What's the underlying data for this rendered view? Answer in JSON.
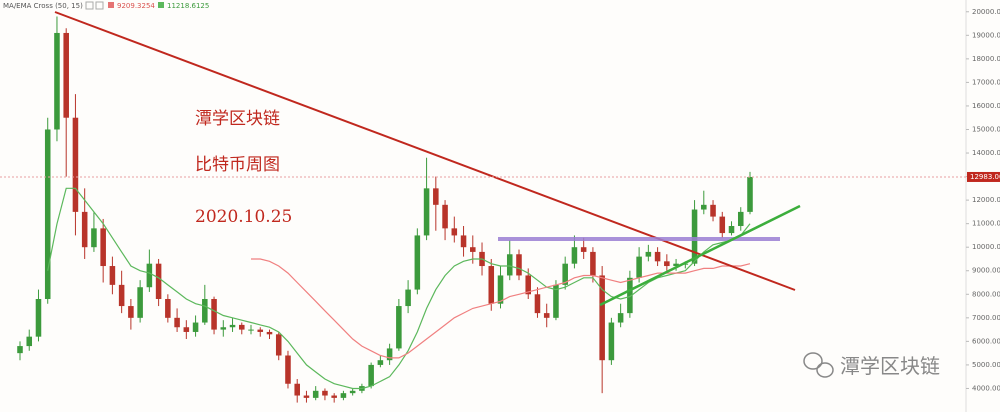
{
  "header": {
    "indicator": "MA/EMA Cross (50, 15)",
    "value_1": 9209.3254,
    "value_2": 11218.6125
  },
  "notes": [
    "潭学区块链",
    "比特币周图",
    "2020.10.25"
  ],
  "watermark": "潭学区块链",
  "chart_data": {
    "type": "candlestick",
    "up_color": "#3c9a3c",
    "down_color": "#b8342a",
    "ylim": [
      3000,
      20500
    ],
    "yticks": [
      {
        "value": 4000,
        "label": "4000.00"
      },
      {
        "value": 5000,
        "label": "5000.00"
      },
      {
        "value": 6000,
        "label": "6000.00"
      },
      {
        "value": 7000,
        "label": "7000.00"
      },
      {
        "value": 8000,
        "label": "8000.00"
      },
      {
        "value": 9000,
        "label": "9000.00"
      },
      {
        "value": 10000,
        "label": "10000.00"
      },
      {
        "value": 11000,
        "label": "11000.00"
      },
      {
        "value": 12000,
        "label": "12000.00"
      },
      {
        "value": 13000,
        "label": "13000.00"
      },
      {
        "value": 14000,
        "label": "14000.00"
      },
      {
        "value": 15000,
        "label": "15000.00"
      },
      {
        "value": 16000,
        "label": "16000.00"
      },
      {
        "value": 17000,
        "label": "17000.00"
      },
      {
        "value": 18000,
        "label": "18000.00"
      },
      {
        "value": 19000,
        "label": "19000.00"
      },
      {
        "value": 20000,
        "label": "20000.00"
      }
    ],
    "last_price": {
      "value": 12983,
      "label": "12983.00"
    },
    "candles": [
      [
        5500,
        6000,
        5200,
        5800
      ],
      [
        5800,
        6500,
        5600,
        6200
      ],
      [
        6200,
        8200,
        6000,
        7800
      ],
      [
        7800,
        15500,
        7600,
        15000
      ],
      [
        15000,
        19800,
        14500,
        19100
      ],
      [
        19100,
        19300,
        13000,
        15500
      ],
      [
        15500,
        16500,
        10500,
        11500
      ],
      [
        11500,
        12500,
        9500,
        10000
      ],
      [
        10000,
        11500,
        9800,
        10800
      ],
      [
        10800,
        11200,
        8500,
        9200
      ],
      [
        9200,
        9600,
        8000,
        8400
      ],
      [
        8400,
        9000,
        7200,
        7500
      ],
      [
        7500,
        7800,
        6500,
        7000
      ],
      [
        7000,
        8600,
        6800,
        8300
      ],
      [
        8300,
        9900,
        8100,
        9300
      ],
      [
        9300,
        9500,
        7500,
        7800
      ],
      [
        7800,
        8000,
        6800,
        7000
      ],
      [
        7000,
        7400,
        6400,
        6600
      ],
      [
        6600,
        6900,
        6100,
        6400
      ],
      [
        6400,
        7100,
        6200,
        6800
      ],
      [
        6800,
        8400,
        6700,
        7800
      ],
      [
        7800,
        7900,
        6300,
        6500
      ],
      [
        6500,
        6900,
        6200,
        6600
      ],
      [
        6600,
        7000,
        6400,
        6700
      ],
      [
        6700,
        6800,
        6300,
        6500
      ],
      [
        6500,
        6700,
        6300,
        6500
      ],
      [
        6500,
        6600,
        6200,
        6400
      ],
      [
        6400,
        6500,
        6100,
        6300
      ],
      [
        6300,
        6400,
        5200,
        5400
      ],
      [
        5400,
        5600,
        4000,
        4200
      ],
      [
        4200,
        4400,
        3400,
        3700
      ],
      [
        3700,
        3900,
        3400,
        3600
      ],
      [
        3600,
        4100,
        3500,
        3900
      ],
      [
        3900,
        4000,
        3500,
        3700
      ],
      [
        3700,
        3800,
        3400,
        3600
      ],
      [
        3600,
        3900,
        3500,
        3800
      ],
      [
        3800,
        4000,
        3700,
        3900
      ],
      [
        3900,
        4200,
        3800,
        4100
      ],
      [
        4100,
        5100,
        4000,
        5000
      ],
      [
        5000,
        5400,
        4900,
        5200
      ],
      [
        5200,
        5900,
        5000,
        5700
      ],
      [
        5700,
        7800,
        5600,
        7500
      ],
      [
        7500,
        8600,
        7200,
        8200
      ],
      [
        8200,
        10800,
        8000,
        10500
      ],
      [
        10500,
        13800,
        10300,
        12500
      ],
      [
        12500,
        13000,
        10700,
        11800
      ],
      [
        11800,
        12000,
        10300,
        10800
      ],
      [
        10800,
        11300,
        10200,
        10500
      ],
      [
        10500,
        10900,
        9600,
        10000
      ],
      [
        10000,
        10500,
        9300,
        9800
      ],
      [
        9800,
        10200,
        8800,
        9200
      ],
      [
        9200,
        9500,
        7300,
        7600
      ],
      [
        7600,
        9200,
        7400,
        8800
      ],
      [
        8800,
        10300,
        8600,
        9700
      ],
      [
        9700,
        9900,
        8600,
        8800
      ],
      [
        8800,
        9100,
        7800,
        8000
      ],
      [
        8000,
        8300,
        7000,
        7200
      ],
      [
        7200,
        7600,
        6600,
        7000
      ],
      [
        7000,
        8600,
        6900,
        8400
      ],
      [
        8400,
        9600,
        8200,
        9300
      ],
      [
        9300,
        10500,
        9100,
        10000
      ],
      [
        10000,
        10400,
        9500,
        9800
      ],
      [
        9800,
        10000,
        8500,
        8800
      ],
      [
        8800,
        9200,
        3800,
        5200
      ],
      [
        5200,
        7000,
        5000,
        6800
      ],
      [
        6800,
        7600,
        6600,
        7200
      ],
      [
        7200,
        9000,
        7000,
        8700
      ],
      [
        8700,
        10000,
        8500,
        9600
      ],
      [
        9600,
        10100,
        9400,
        9800
      ],
      [
        9800,
        10000,
        9200,
        9400
      ],
      [
        9400,
        9700,
        9000,
        9200
      ],
      [
        9200,
        9500,
        9000,
        9300
      ],
      [
        9300,
        9400,
        9100,
        9300
      ],
      [
        9300,
        12000,
        9200,
        11600
      ],
      [
        11600,
        12400,
        11400,
        11800
      ],
      [
        11800,
        12000,
        11100,
        11300
      ],
      [
        11300,
        11500,
        10400,
        10600
      ],
      [
        10600,
        11100,
        10500,
        10900
      ],
      [
        10900,
        11700,
        10700,
        11500
      ],
      [
        11500,
        13200,
        11400,
        12983
      ]
    ],
    "lines": [
      {
        "color": "#5cb85c",
        "values": [
          null,
          null,
          null,
          9000,
          11000,
          12500,
          12500,
          12000,
          11500,
          11000,
          10400,
          9800,
          9200,
          9000,
          8900,
          8700,
          8400,
          8100,
          7800,
          7600,
          7500,
          7300,
          7100,
          7000,
          6900,
          6800,
          6700,
          6600,
          6400,
          6000,
          5500,
          5000,
          4700,
          4400,
          4200,
          4100,
          4000,
          4000,
          4100,
          4300,
          4500,
          5000,
          5600,
          6400,
          7400,
          8200,
          8800,
          9200,
          9400,
          9500,
          9500,
          9300,
          9200,
          9200,
          9100,
          8900,
          8600,
          8300,
          8200,
          8300,
          8500,
          8700,
          8700,
          8200,
          7900,
          7800,
          7900,
          8200,
          8500,
          8700,
          8800,
          8900,
          9000,
          9400,
          9800,
          10100,
          10200,
          10300,
          10500,
          11000
        ]
      },
      {
        "color": "#f08080",
        "values": [
          null,
          null,
          null,
          null,
          null,
          null,
          null,
          null,
          null,
          null,
          null,
          null,
          null,
          null,
          null,
          null,
          null,
          null,
          null,
          null,
          null,
          null,
          null,
          null,
          null,
          9500,
          9500,
          9400,
          9200,
          8900,
          8500,
          8100,
          7700,
          7300,
          6900,
          6500,
          6100,
          5800,
          5600,
          5400,
          5300,
          5300,
          5500,
          5800,
          6100,
          6400,
          6700,
          7000,
          7200,
          7400,
          7500,
          7600,
          7700,
          7900,
          8000,
          8100,
          8200,
          8300,
          8400,
          8500,
          8700,
          8800,
          8800,
          8700,
          8600,
          8500,
          8600,
          8700,
          8800,
          8900,
          8900,
          8900,
          8900,
          9000,
          9100,
          9100,
          9200,
          9200,
          9200,
          9300
        ]
      }
    ]
  }
}
